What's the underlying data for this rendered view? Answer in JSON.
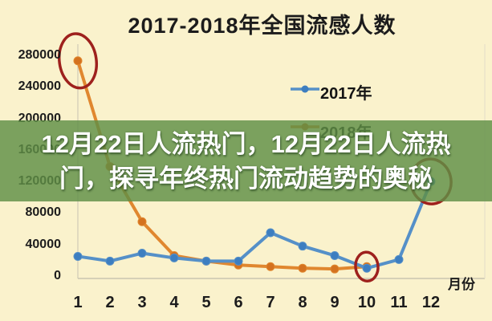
{
  "page": {
    "background_color": "#faf2cc"
  },
  "banner": {
    "line1": "12月22日人流热门，12月22日人流热",
    "line2": "门，探寻年终热门流动趋势的奥秘",
    "overlay_color": "#5f8f46",
    "text_color": "#ffffff"
  },
  "chart_data": {
    "type": "line",
    "title": "2017-2018年全国流感人数",
    "xlabel": "月份",
    "ylabel": "",
    "categories": [
      1,
      2,
      3,
      4,
      5,
      6,
      7,
      8,
      9,
      10,
      11,
      12
    ],
    "x_tick_labels": [
      "1",
      "2",
      "3",
      "4",
      "5",
      "6",
      "7",
      "8",
      "9",
      "10",
      "11",
      "12"
    ],
    "yticks": [
      0,
      40000,
      80000,
      120000,
      160000,
      200000,
      240000,
      280000
    ],
    "ylim": [
      0,
      300000
    ],
    "grid": false,
    "legend_position": "inside-upper-right",
    "series": [
      {
        "name": "2017年",
        "color": "#5590c8",
        "marker_color": "#3d7ec0",
        "values": [
          26000,
          20000,
          30000,
          24000,
          20000,
          20000,
          56000,
          39000,
          27000,
          11000,
          22000,
          121000
        ]
      },
      {
        "name": "2018年",
        "color": "#e0872f",
        "marker_color": "#d4721f",
        "values": [
          274000,
          140000,
          70000,
          27000,
          20000,
          15000,
          13000,
          11000,
          10000,
          13000,
          null,
          null
        ]
      }
    ],
    "annotations": [
      {
        "shape": "ellipse",
        "series": "2018年",
        "month": 1
      },
      {
        "shape": "ellipse",
        "series": "2018年",
        "month": 10
      },
      {
        "shape": "ellipse",
        "series": "2017年",
        "month": 12
      }
    ],
    "annotation_color": "#9e211d"
  }
}
